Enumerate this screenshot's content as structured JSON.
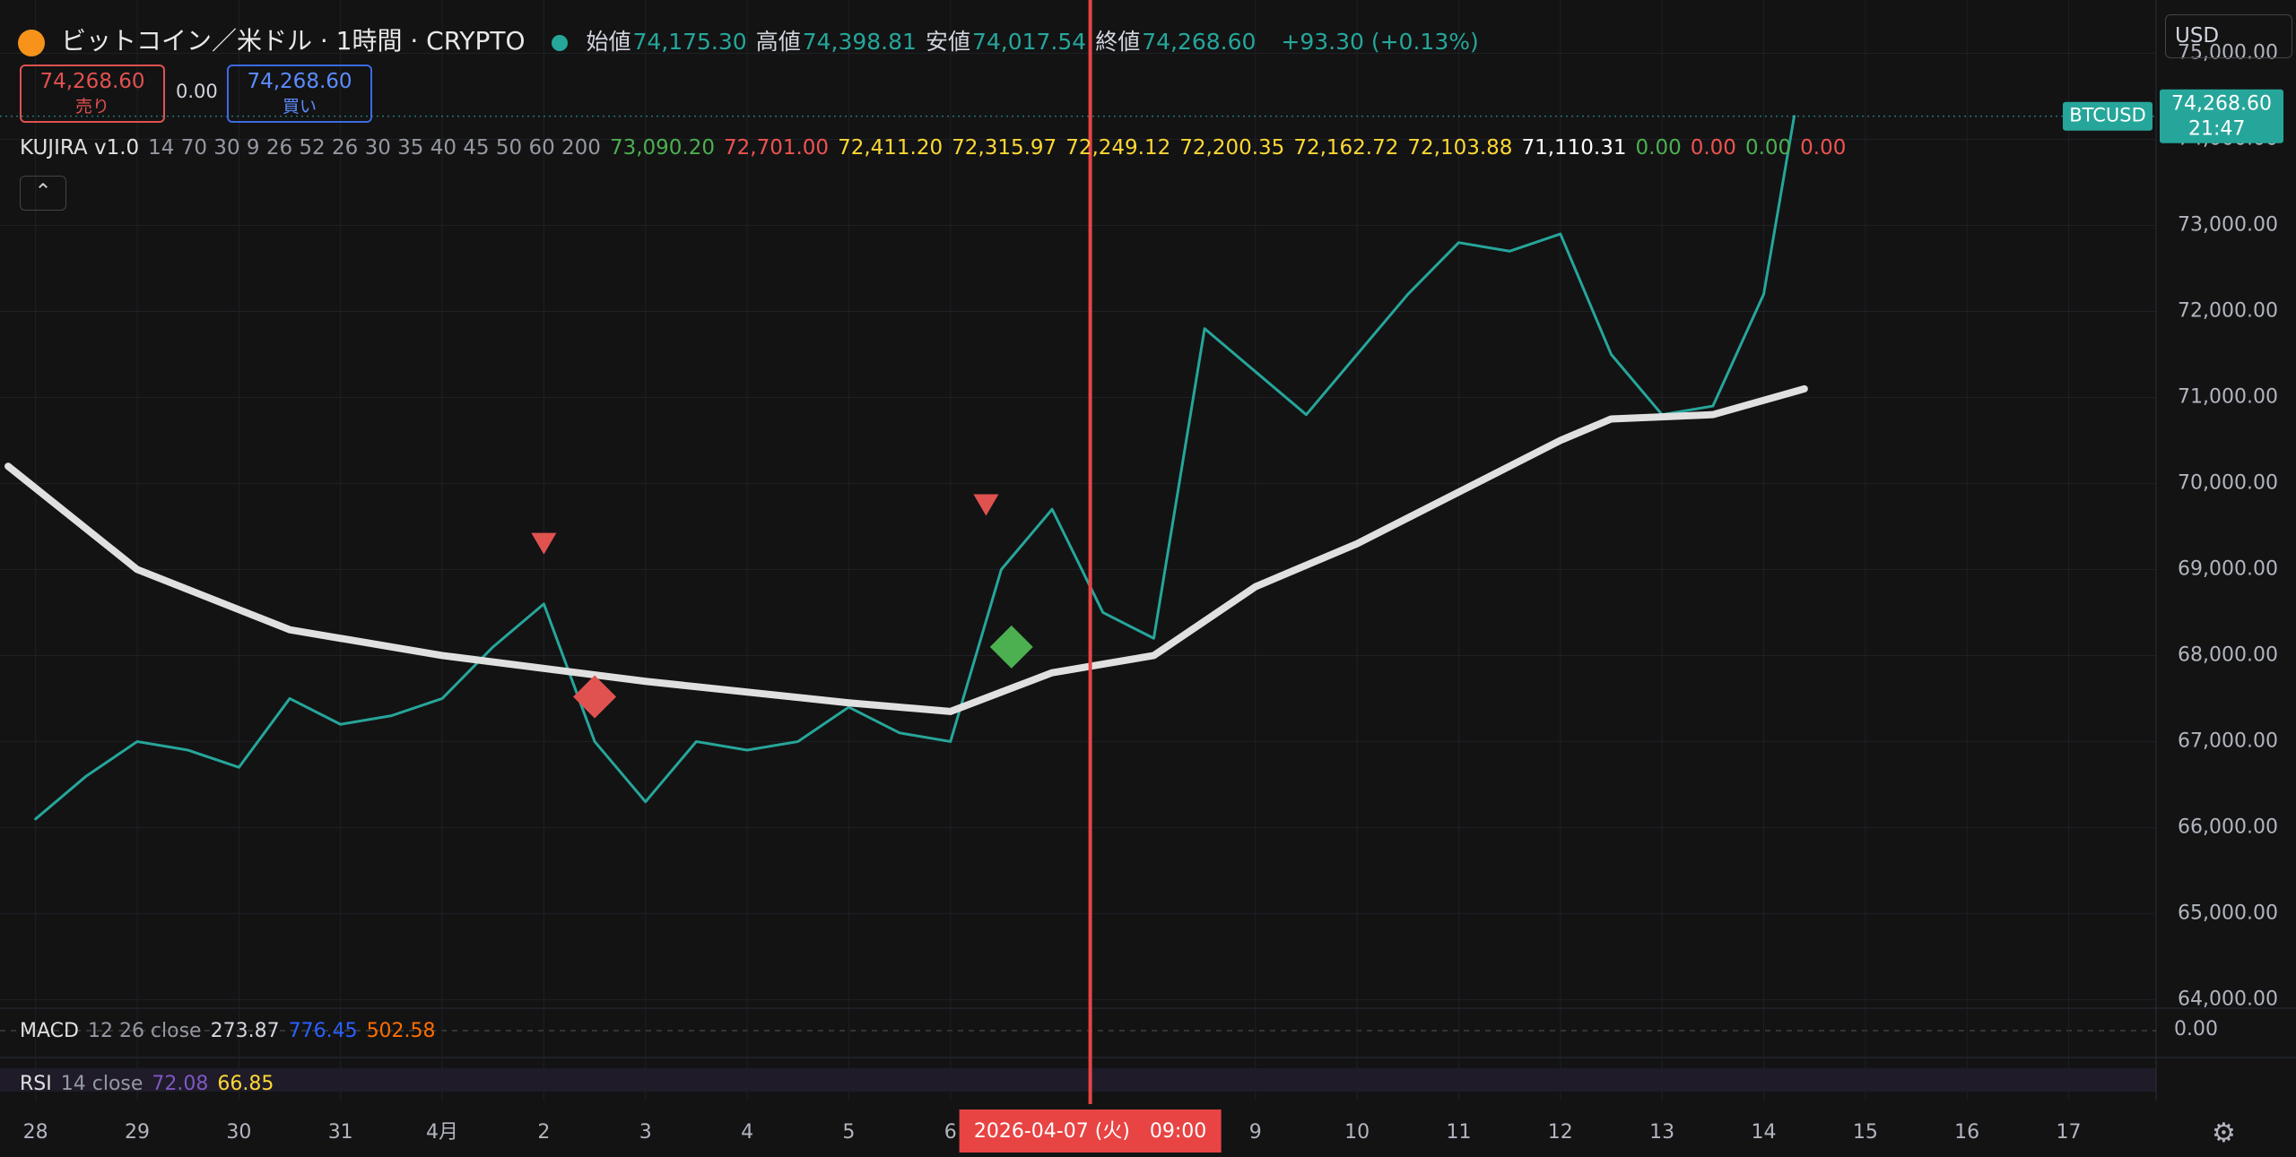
{
  "header": {
    "symbol": "ビットコイン／米ドル · 1時間 · CRYPTO",
    "ohlc": [
      {
        "label": "始値",
        "value": "74,175.30"
      },
      {
        "label": "高値",
        "value": "74,398.81"
      },
      {
        "label": "安値",
        "value": "74,017.54"
      },
      {
        "label": "終値",
        "value": "74,268.60"
      }
    ],
    "change": "+93.30 (+0.13%)",
    "currency": "USD"
  },
  "trade": {
    "sell": {
      "price": "74,268.60",
      "label": "売り"
    },
    "spread": "0.00",
    "buy": {
      "price": "74,268.60",
      "label": "買い"
    }
  },
  "indicators": {
    "kujira": {
      "name": "KUJIRA v1.0",
      "params": "14 70 30 9 26 52 26 30 35 40 45 50 60 200",
      "values": [
        {
          "text": "73,090.20",
          "color": "#4caf50"
        },
        {
          "text": "72,701.00",
          "color": "#ef5350"
        },
        {
          "text": "72,411.20",
          "color": "#fdd835"
        },
        {
          "text": "72,315.97",
          "color": "#fdd835"
        },
        {
          "text": "72,249.12",
          "color": "#fdd835"
        },
        {
          "text": "72,200.35",
          "color": "#fdd835"
        },
        {
          "text": "72,162.72",
          "color": "#fdd835"
        },
        {
          "text": "72,103.88",
          "color": "#fdd835"
        },
        {
          "text": "71,110.31",
          "color": "#ffffff"
        },
        {
          "text": "0.00",
          "color": "#4caf50"
        },
        {
          "text": "0.00",
          "color": "#ef5350"
        },
        {
          "text": "0.00",
          "color": "#4caf50"
        },
        {
          "text": "0.00",
          "color": "#ef5350"
        }
      ]
    },
    "macd": {
      "name": "MACD",
      "params": "12 26 close",
      "values": [
        {
          "text": "273.87",
          "color": "#d1d4dc"
        },
        {
          "text": "776.45",
          "color": "#2962ff"
        },
        {
          "text": "502.58",
          "color": "#ff6d00"
        }
      ],
      "zero_label": "0.00"
    },
    "rsi": {
      "name": "RSI",
      "params": "14 close",
      "values": [
        {
          "text": "72.08",
          "color": "#7e57c2"
        },
        {
          "text": "66.85",
          "color": "#fdd835"
        }
      ]
    }
  },
  "chart_data": {
    "type": "line",
    "grid": true,
    "xlim": [
      -0.35,
      20.86
    ],
    "xticks": [
      {
        "value": 0,
        "label": "28"
      },
      {
        "value": 1,
        "label": "29"
      },
      {
        "value": 2,
        "label": "30"
      },
      {
        "value": 3,
        "label": "31"
      },
      {
        "value": 4,
        "label": "4月"
      },
      {
        "value": 5,
        "label": "2"
      },
      {
        "value": 6,
        "label": "3"
      },
      {
        "value": 7,
        "label": "4"
      },
      {
        "value": 8,
        "label": "5"
      },
      {
        "value": 9,
        "label": "6"
      },
      {
        "value": 12,
        "label": "9"
      },
      {
        "value": 13,
        "label": "10"
      },
      {
        "value": 14,
        "label": "11"
      },
      {
        "value": 15,
        "label": "12"
      },
      {
        "value": 16,
        "label": "13"
      },
      {
        "value": 17,
        "label": "14"
      },
      {
        "value": 18,
        "label": "15"
      },
      {
        "value": 19,
        "label": "16"
      },
      {
        "value": 20,
        "label": "17"
      }
    ],
    "ylim": [
      63900,
      75620
    ],
    "yticks": [
      {
        "value": 64000,
        "label": "64,000.00"
      },
      {
        "value": 65000,
        "label": "65,000.00"
      },
      {
        "value": 66000,
        "label": "66,000.00"
      },
      {
        "value": 67000,
        "label": "67,000.00"
      },
      {
        "value": 68000,
        "label": "68,000.00"
      },
      {
        "value": 69000,
        "label": "69,000.00"
      },
      {
        "value": 70000,
        "label": "70,000.00"
      },
      {
        "value": 71000,
        "label": "71,000.00"
      },
      {
        "value": 72000,
        "label": "72,000.00"
      },
      {
        "value": 73000,
        "label": "73,000.00"
      },
      {
        "value": 74000,
        "label": "74,000.00"
      },
      {
        "value": 75000,
        "label": "75,000.00"
      }
    ],
    "series": [
      {
        "color": "#26a69a",
        "x": [
          0,
          0.5,
          1,
          1.5,
          2,
          2.5,
          3,
          3.5,
          4,
          4.5,
          5,
          5.5,
          6,
          6.5,
          7,
          7.5,
          8,
          8.5,
          9,
          9.5,
          10,
          10.5,
          11,
          11.5,
          12,
          12.5,
          13,
          13.5,
          14,
          14.5,
          15,
          15.5,
          16,
          16.5,
          17,
          17.3
        ],
        "values": [
          66100,
          66600,
          67000,
          66900,
          66700,
          67500,
          67200,
          67300,
          67500,
          68100,
          68600,
          67000,
          66300,
          67000,
          66900,
          67000,
          67400,
          67100,
          67000,
          69000,
          69700,
          68500,
          68200,
          71800,
          71300,
          70800,
          71500,
          72200,
          72800,
          72700,
          72900,
          71500,
          70800,
          70900,
          72200,
          74268.6
        ]
      },
      {
        "color": "#e0e0e0",
        "x": [
          -0.27,
          1,
          2.5,
          4,
          6,
          8,
          9,
          10,
          11,
          12,
          13,
          14,
          15,
          15.5,
          16.5,
          17.4
        ],
        "values": [
          70200,
          69000,
          68300,
          68000,
          67700,
          67450,
          67350,
          67800,
          68000,
          68800,
          69300,
          69900,
          70500,
          70750,
          70800,
          71100
        ]
      }
    ],
    "signals": [
      {
        "shape": "triangle",
        "x": 5.0,
        "y": 69300,
        "color": "#e0524f"
      },
      {
        "shape": "triangle",
        "x": 9.35,
        "y": 69750,
        "color": "#e0524f"
      },
      {
        "shape": "diamond",
        "x": 9.6,
        "y": 68100,
        "color": "#4caf50"
      },
      {
        "shape": "diamond",
        "x": 5.5,
        "y": 67520,
        "color": "#e0524f"
      }
    ],
    "last_price": {
      "value": 74268.6,
      "label": "74,268.60",
      "countdown": "21:47",
      "symbol": "BTCUSD",
      "color": "#26a69a"
    },
    "crosshair": {
      "x": 10.375,
      "label": "2026-04-07 (火)　09:00",
      "color": "#e84444"
    }
  }
}
